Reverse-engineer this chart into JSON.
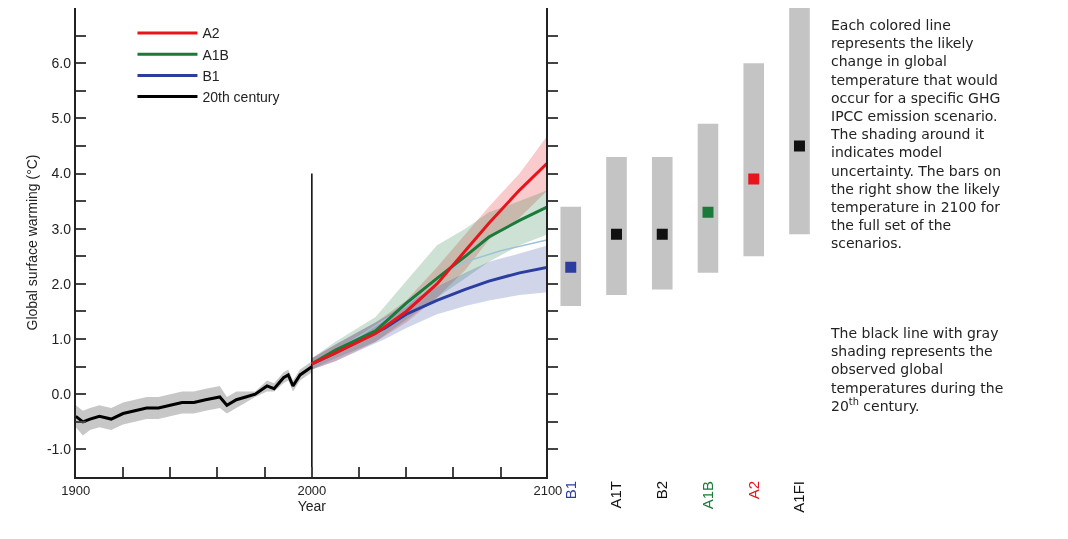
{
  "chart_data": [
    {
      "type": "line",
      "xlabel": "Year",
      "ylabel": "Global surface warming (°C)",
      "xlim": [
        1900,
        2100
      ],
      "ylim": [
        -1.5,
        7
      ],
      "xticks": [
        1900,
        {
          "value": 1920,
          "label": null
        },
        {
          "value": 1940,
          "label": null
        },
        {
          "value": 1960,
          "label": null
        },
        {
          "value": 1980,
          "label": null
        },
        2000,
        {
          "value": 2020,
          "label": null
        },
        {
          "value": 2040,
          "label": null
        },
        {
          "value": 2060,
          "label": null
        },
        {
          "value": 2080,
          "label": null
        },
        2100
      ],
      "yticks": [
        {
          "value": -1.0,
          "label": "-1.0"
        },
        {
          "value": -0.5,
          "label": null
        },
        {
          "value": 0.0,
          "label": "0.0"
        },
        {
          "value": 0.5,
          "label": null
        },
        {
          "value": 1.0,
          "label": "1.0"
        },
        {
          "value": 1.5,
          "label": null
        },
        {
          "value": 2.0,
          "label": "2.0"
        },
        {
          "value": 2.5,
          "label": null
        },
        {
          "value": 3.0,
          "label": "3.0"
        },
        {
          "value": 3.5,
          "label": null
        },
        {
          "value": 4.0,
          "label": "4.0"
        },
        {
          "value": 4.5,
          "label": null
        },
        {
          "value": 5.0,
          "label": "5.0"
        },
        {
          "value": 5.5,
          "label": null
        },
        {
          "value": 6.0,
          "label": "6.0"
        },
        {
          "value": 6.5,
          "label": null
        }
      ],
      "legend": "top left",
      "series": [
        {
          "name": "A2",
          "color": "#e8141c",
          "x": [
            2000,
            2010,
            2027,
            2040,
            2053,
            2065,
            2075,
            2088,
            2100
          ],
          "values": [
            0.55,
            0.75,
            1.1,
            1.5,
            2.0,
            2.6,
            3.1,
            3.7,
            4.2
          ],
          "lower": [
            0.45,
            0.6,
            0.95,
            1.3,
            1.75,
            2.25,
            2.8,
            3.2,
            3.7
          ],
          "upper": [
            0.65,
            0.9,
            1.3,
            1.7,
            2.3,
            2.9,
            3.4,
            4.0,
            4.7
          ]
        },
        {
          "name": "A1B",
          "color": "#1a7a3a",
          "x": [
            2000,
            2010,
            2027,
            2040,
            2053,
            2065,
            2075,
            2088,
            2100
          ],
          "values": [
            0.55,
            0.8,
            1.15,
            1.65,
            2.1,
            2.5,
            2.85,
            3.15,
            3.4
          ],
          "lower": [
            0.45,
            0.65,
            0.95,
            1.35,
            1.75,
            2.1,
            2.4,
            2.7,
            2.9
          ],
          "upper": [
            0.65,
            0.95,
            1.4,
            2.05,
            2.7,
            3.0,
            3.3,
            3.5,
            3.7
          ]
        },
        {
          "name": "B1",
          "color": "#2b3ea0",
          "x": [
            2000,
            2010,
            2031,
            2040,
            2053,
            2065,
            2075,
            2088,
            2100
          ],
          "values": [
            0.55,
            0.75,
            1.2,
            1.45,
            1.7,
            1.9,
            2.05,
            2.2,
            2.3
          ],
          "lower": [
            0.45,
            0.6,
            1.0,
            1.2,
            1.45,
            1.6,
            1.7,
            1.8,
            1.85
          ],
          "upper": [
            0.65,
            0.9,
            1.4,
            1.65,
            1.95,
            2.2,
            2.4,
            2.55,
            2.7
          ]
        },
        {
          "name": "20th century",
          "color": "#000000",
          "x": [
            1900,
            1903,
            1906,
            1910,
            1915,
            1920,
            1925,
            1930,
            1935,
            1940,
            1945,
            1950,
            1955,
            1961,
            1964,
            1968,
            1972,
            1976,
            1981,
            1984,
            1988,
            1990,
            1992,
            1995,
            2000
          ],
          "values": [
            -0.4,
            -0.5,
            -0.45,
            -0.4,
            -0.45,
            -0.35,
            -0.3,
            -0.25,
            -0.25,
            -0.2,
            -0.15,
            -0.15,
            -0.1,
            -0.05,
            -0.2,
            -0.1,
            -0.05,
            0.0,
            0.15,
            0.1,
            0.3,
            0.35,
            0.15,
            0.35,
            0.5
          ],
          "lower": [
            -0.6,
            -0.75,
            -0.65,
            -0.6,
            -0.65,
            -0.55,
            -0.5,
            -0.45,
            -0.45,
            -0.4,
            -0.35,
            -0.35,
            -0.3,
            -0.25,
            -0.35,
            -0.25,
            -0.15,
            -0.05,
            0.05,
            0.05,
            0.2,
            0.25,
            0.05,
            0.25,
            0.4
          ],
          "upper": [
            -0.2,
            -0.3,
            -0.25,
            -0.2,
            -0.25,
            -0.15,
            -0.1,
            -0.05,
            -0.05,
            0.0,
            0.05,
            0.05,
            0.1,
            0.15,
            -0.05,
            0.05,
            0.05,
            0.05,
            0.25,
            0.2,
            0.4,
            0.45,
            0.25,
            0.45,
            0.6
          ]
        },
        {
          "color": "#9cc3d5",
          "x": [
            2000,
            2020,
            2040,
            2053,
            2065,
            2080,
            2100
          ],
          "values": [
            0.55,
            1.05,
            1.6,
            2.1,
            2.4,
            2.6,
            2.8
          ]
        },
        {
          "color": "#000000",
          "x": [
            2000,
            2000
          ],
          "values": [
            -1.5,
            4.0
          ]
        }
      ]
    },
    {
      "type": "bar",
      "categories": [
        "B1",
        "A1T",
        "B2",
        "A1B",
        "A2",
        "A1FI"
      ],
      "ylim": [
        -1.5,
        7
      ],
      "tick_labels": "x",
      "marker": "square",
      "yticks": [
        {
          "value": -1.0,
          "label": null
        },
        {
          "value": -0.5,
          "label": null
        },
        {
          "value": 0.0,
          "label": null
        },
        {
          "value": 0.5,
          "label": null
        },
        {
          "value": 1.0,
          "label": null
        },
        {
          "value": 1.5,
          "label": null
        },
        {
          "value": 2.0,
          "label": null
        },
        {
          "value": 2.5,
          "label": null
        },
        {
          "value": 3.0,
          "label": null
        },
        {
          "value": 3.5,
          "label": null
        },
        {
          "value": 4.0,
          "label": null
        },
        {
          "value": 4.5,
          "label": null
        },
        {
          "value": 5.0,
          "label": null
        },
        {
          "value": 5.5,
          "label": null
        },
        {
          "value": 6.0,
          "label": null
        },
        {
          "value": 6.5,
          "label": null
        }
      ],
      "series": [
        {
          "type": "bar",
          "color": "#c4c4c4",
          "base": [
            1.6,
            1.8,
            1.9,
            2.2,
            2.5,
            2.9
          ],
          "values": [
            1.8,
            2.5,
            2.4,
            2.7,
            3.5,
            4.1
          ]
        },
        {
          "type": "scatter",
          "x": [
            "B1",
            "A1T",
            "B2",
            "A1B",
            "A2",
            "A1FI"
          ],
          "values": [
            2.3,
            2.9,
            2.9,
            3.3,
            3.9,
            4.5
          ],
          "colors": [
            "#2b3ea0",
            "#111111",
            "#111111",
            "#1a7a3a",
            "#e8141c",
            "#111111"
          ]
        }
      ]
    },
    {
      "type": "other",
      "annotations": [
        "Each colored line represents the likely change in global temperature that would occur for a specific GHG IPCC emission scenario. The shading around it indicates model uncertainty. The bars on the right show the likely temperature in 2100 for the full set of the scenarios.",
        "The black line with gray shading represents the observed global temperatures during the 20$^{th}$ century."
      ]
    }
  ]
}
